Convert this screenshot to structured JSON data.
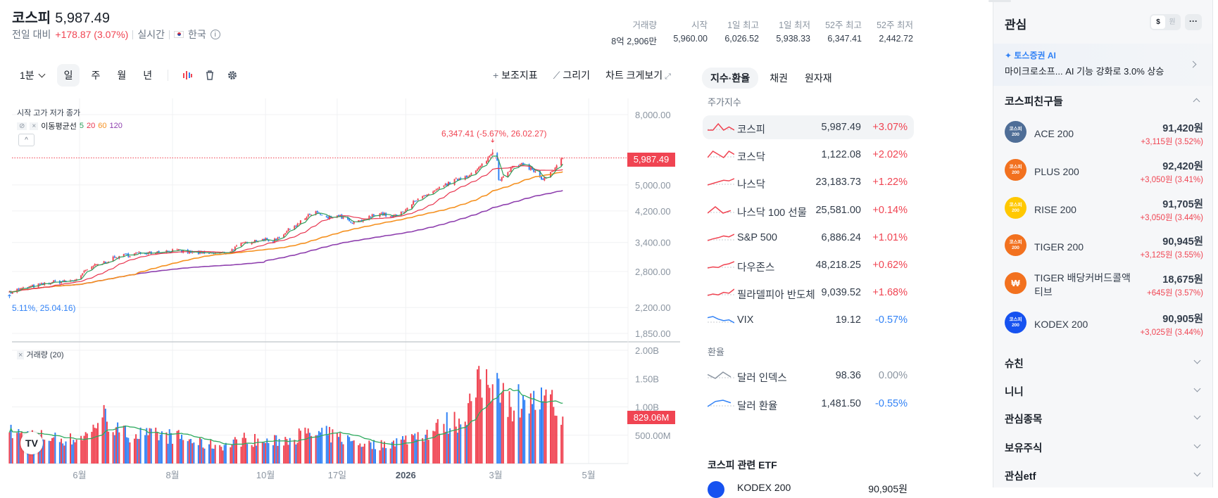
{
  "header": {
    "name": "코스피",
    "price": "5,987.49",
    "change_label": "전일 대비",
    "change": "+178.87 (3.07%)",
    "realtime": "실시간",
    "country": "한국",
    "info_icon": "i"
  },
  "stats": [
    {
      "label": "거래량",
      "value": "8억 2,906만"
    },
    {
      "label": "시작",
      "value": "5,960.00"
    },
    {
      "label": "1일 최고",
      "value": "6,026.52"
    },
    {
      "label": "1일 최저",
      "value": "5,938.33"
    },
    {
      "label": "52주 최고",
      "value": "6,347.41"
    },
    {
      "label": "52주 최저",
      "value": "2,442.72"
    }
  ],
  "toolbar": {
    "interval": "1분",
    "periods": [
      "일",
      "주",
      "월",
      "년"
    ],
    "indicators": "보조지표",
    "draw": "그리기",
    "fullscreen": "차트 크게보기"
  },
  "legend": {
    "ohlc": "시작 고가 저가 종가",
    "ma_label": "이동평균선",
    "ma": [
      "5",
      "20",
      "60",
      "120"
    ],
    "volume": "거래량 (20)",
    "collapse": "^"
  },
  "colors": {
    "up": "#f04452",
    "down": "#3182f6",
    "ma5": "#2e9e5b",
    "ma20": "#e8344e",
    "ma60": "#f59120",
    "ma120": "#8e3fae",
    "vol_ma": "#2eaa5e"
  },
  "chart_data": {
    "type": "candlestick",
    "title": "코스피",
    "scale": "log",
    "ylim": [
      1850,
      8000
    ],
    "y_ticks": [
      "8,000.00",
      "5,000.00",
      "4,200.00",
      "3,400.00",
      "2,800.00",
      "2,200.00",
      "1,850.00"
    ],
    "y_tick_values": [
      8000,
      5000,
      4200,
      3400,
      2800,
      2200,
      1850
    ],
    "last_price_tag": "5,987.49",
    "last_price": 5987.49,
    "high_annotation": "6,347.41 (-5.67%, 26.02.27)",
    "high": {
      "date": "2026-02-27",
      "value": 6347.41
    },
    "low_annotation": "5.11%, 25.04.16)",
    "low": {
      "date": "2025-04-16",
      "value": 2442.72
    },
    "x_ticks": [
      {
        "label": "6월",
        "date": "2025-06-01"
      },
      {
        "label": "8월",
        "date": "2025-08-01"
      },
      {
        "label": "10월",
        "date": "2025-10-01"
      },
      {
        "label": "17일",
        "date": "2025-11-17"
      },
      {
        "label": "2026",
        "date": "2026-01-01"
      },
      {
        "label": "3월",
        "date": "2026-03-01"
      },
      {
        "label": "5월",
        "date": "2026-05-01"
      }
    ],
    "keypoints": [
      [
        "2025-04-16",
        2449,
        550
      ],
      [
        "2025-05-14",
        2606,
        450
      ],
      [
        "2025-05-28",
        2630,
        420
      ],
      [
        "2025-06-09",
        2890,
        560
      ],
      [
        "2025-06-15",
        2950,
        900
      ],
      [
        "2025-06-27",
        3103,
        550
      ],
      [
        "2025-07-16",
        3186,
        500
      ],
      [
        "2025-08-03",
        3220,
        480
      ],
      [
        "2025-08-23",
        3150,
        330
      ],
      [
        "2025-09-06",
        3180,
        320
      ],
      [
        "2025-09-18",
        3410,
        450
      ],
      [
        "2025-09-29",
        3480,
        380
      ],
      [
        "2025-10-05",
        3410,
        380
      ],
      [
        "2025-10-17",
        3720,
        450
      ],
      [
        "2025-10-28",
        4030,
        530
      ],
      [
        "2025-11-03",
        4190,
        500
      ],
      [
        "2025-11-09",
        3990,
        520
      ],
      [
        "2025-11-18",
        4060,
        470
      ],
      [
        "2025-11-27",
        3860,
        400
      ],
      [
        "2025-12-05",
        3960,
        350
      ],
      [
        "2025-12-14",
        4150,
        320
      ],
      [
        "2025-12-23",
        4030,
        380
      ],
      [
        "2025-12-31",
        4170,
        420
      ],
      [
        "2026-01-06",
        4490,
        500
      ],
      [
        "2026-01-18",
        4700,
        560
      ],
      [
        "2026-01-26",
        4980,
        700
      ],
      [
        "2026-02-07",
        5260,
        780
      ],
      [
        "2026-02-15",
        5410,
        1200
      ],
      [
        "2026-02-21",
        5780,
        1500
      ],
      [
        "2026-02-27",
        6210,
        1400
      ],
      [
        "2026-03-02",
        5880,
        1600
      ],
      [
        "2026-03-03",
        5170,
        1500
      ],
      [
        "2026-03-11",
        5600,
        1000
      ],
      [
        "2026-03-19",
        5730,
        1200
      ],
      [
        "2026-03-25",
        5540,
        1050
      ],
      [
        "2026-04-01",
        5170,
        1100
      ],
      [
        "2026-04-08",
        5500,
        1000
      ],
      [
        "2026-04-14",
        5987.49,
        829.06
      ]
    ],
    "keypoint_fields": [
      "date",
      "close",
      "volume_millions"
    ],
    "volume": {
      "y_ticks": [
        "2.00B",
        "1.50B",
        "1.00B",
        "500.00M"
      ],
      "y_tick_values": [
        2000,
        1500,
        1000,
        500
      ],
      "last_tag": "829.06M",
      "ma_period": 20
    }
  },
  "markets": {
    "tabs": [
      "지수·환율",
      "채권",
      "원자재"
    ],
    "index_title": "주가지수",
    "indices": [
      {
        "name": "코스피",
        "value": "5,987.49",
        "change": "+3.07%",
        "dir": "up",
        "spark": [
          5,
          5,
          5.2,
          5,
          5.1,
          5
        ]
      },
      {
        "name": "코스닥",
        "value": "1,122.08",
        "change": "+2.02%",
        "dir": "up",
        "spark": [
          5,
          5.2,
          5.1,
          5,
          5.2,
          5.1
        ]
      },
      {
        "name": "나스닥",
        "value": "23,183.73",
        "change": "+1.22%",
        "dir": "up",
        "spark": [
          3,
          3.5,
          4,
          4.5,
          4.3,
          5
        ]
      },
      {
        "name": "나스닥 100 선물",
        "value": "25,581.00",
        "change": "+0.14%",
        "dir": "up",
        "spark": [
          5,
          5.5,
          5,
          5.2
        ]
      },
      {
        "name": "S&P 500",
        "value": "6,886.24",
        "change": "+1.01%",
        "dir": "up",
        "spark": [
          3,
          3.6,
          4,
          4.6,
          4.3,
          5.2
        ]
      },
      {
        "name": "다우존스",
        "value": "48,218.25",
        "change": "+0.62%",
        "dir": "up",
        "spark": [
          3,
          3.4,
          3.2,
          4.2,
          4.6,
          5.4
        ]
      },
      {
        "name": "필라델피아 반도체",
        "value": "9,039.52",
        "change": "+1.68%",
        "dir": "up",
        "spark": [
          3,
          3.5,
          3.2,
          4.1,
          3.8,
          5.3
        ]
      },
      {
        "name": "VIX",
        "value": "19.12",
        "change": "-0.57%",
        "dir": "down",
        "spark": [
          5,
          5.3,
          4.6,
          4.2,
          4.4,
          3.6
        ]
      }
    ],
    "fx_title": "환율",
    "fx": [
      {
        "name": "달러 인덱스",
        "value": "98.36",
        "change": "0.00%",
        "dir": "flat",
        "spark": [
          5,
          4.2,
          5.5,
          4.5
        ]
      },
      {
        "name": "달러 환율",
        "value": "1,481.50",
        "change": "-0.55%",
        "dir": "down",
        "spark": [
          4,
          4.8,
          5,
          4.6
        ]
      }
    ],
    "etf_title": "코스피 관련 ETF",
    "etf_preview": {
      "name": "KODEX 200",
      "price": "90,905원"
    }
  },
  "watch": {
    "title": "관심",
    "currency": [
      "$",
      "원"
    ],
    "more": "···",
    "ai_label": "토스증권 AI",
    "ai_text": "마이크로소프... AI 기능 강화로 3.0% 상승",
    "group": "코스피친구들",
    "items": [
      {
        "name": "ACE 200",
        "price": "91,420원",
        "change": "+3,115원 (3.52%)",
        "logo": "코스피 200",
        "color": "#4f6e97"
      },
      {
        "name": "PLUS 200",
        "price": "92,420원",
        "change": "+3,050원 (3.41%)",
        "logo": "코스피 200",
        "color": "#f2711f"
      },
      {
        "name": "RISE 200",
        "price": "91,705원",
        "change": "+3,050원 (3.44%)",
        "logo": "코스피 200",
        "color": "#ffc800"
      },
      {
        "name": "TIGER 200",
        "price": "90,945원",
        "change": "+3,125원 (3.55%)",
        "logo": "코스피 200",
        "color": "#f2711f"
      },
      {
        "name": "TIGER 배당커버드콜액티브",
        "price": "18,675원",
        "change": "+645원 (3.57%)",
        "logo": "₩",
        "color": "#f2711f"
      },
      {
        "name": "KODEX 200",
        "price": "90,905원",
        "change": "+3,025원 (3.44%)",
        "logo": "코스피 200",
        "color": "#1652f0"
      }
    ],
    "groups": [
      "슈친",
      "니니",
      "관심종목",
      "보유주식",
      "관심etf"
    ]
  }
}
